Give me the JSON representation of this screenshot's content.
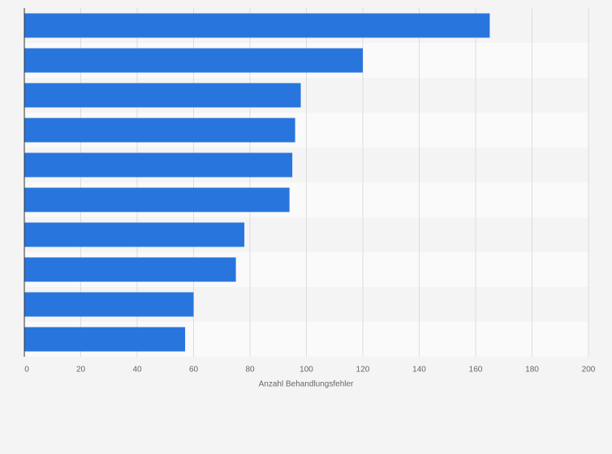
{
  "chart_data": {
    "type": "barh",
    "categories": [
      null,
      null,
      null,
      null,
      null,
      null,
      null,
      null,
      null,
      null
    ],
    "values": [
      165,
      120,
      98,
      96,
      95,
      94,
      78,
      75,
      60,
      57
    ],
    "color": "#2876dd",
    "x_label": "Anzahl Behandlungsfehler",
    "xlim": [
      0,
      200
    ],
    "xticks": [
      0,
      20,
      40,
      60,
      80,
      100,
      120,
      140,
      160,
      180,
      200
    ],
    "grid": true
  }
}
